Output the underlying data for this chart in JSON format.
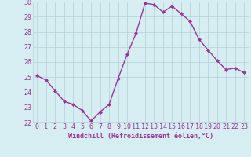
{
  "hours": [
    0,
    1,
    2,
    3,
    4,
    5,
    6,
    7,
    8,
    9,
    10,
    11,
    12,
    13,
    14,
    15,
    16,
    17,
    18,
    19,
    20,
    21,
    22,
    23
  ],
  "values": [
    25.1,
    24.8,
    24.1,
    23.4,
    23.2,
    22.8,
    22.1,
    22.7,
    23.2,
    24.9,
    26.5,
    27.9,
    29.9,
    29.8,
    29.3,
    29.7,
    29.2,
    28.7,
    27.5,
    26.8,
    26.1,
    25.5,
    25.6,
    25.3
  ],
  "line_color": "#993399",
  "marker_color": "#993399",
  "bg_color": "#d6eef2",
  "grid_color": "#b0d0d8",
  "xlabel": "Windchill (Refroidissement éolien,°C)",
  "ylabel": "",
  "ylim": [
    22,
    30
  ],
  "xlim_min": -0.5,
  "xlim_max": 23.5,
  "yticks": [
    22,
    23,
    24,
    25,
    26,
    27,
    28,
    29,
    30
  ],
  "xticks": [
    0,
    1,
    2,
    3,
    4,
    5,
    6,
    7,
    8,
    9,
    10,
    11,
    12,
    13,
    14,
    15,
    16,
    17,
    18,
    19,
    20,
    21,
    22,
    23
  ],
  "xlabel_fontsize": 6,
  "tick_fontsize": 6,
  "line_width": 1.0,
  "marker_size": 2.5
}
